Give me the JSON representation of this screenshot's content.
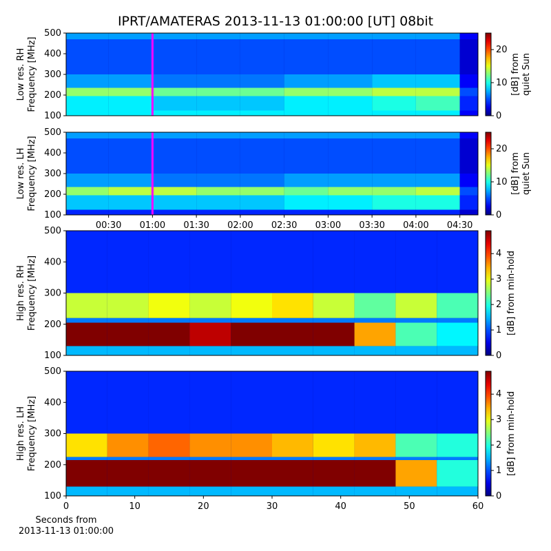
{
  "chart_data": [
    {
      "type": "heatmap",
      "title": "IPRT/AMATERAS 2013-11-13 01:00:00 [UT]   08bit",
      "ylabel": [
        "Low res. RH",
        "Frequency [MHz]"
      ],
      "xlim": [
        1,
        282.4
      ],
      "ylim": [
        100,
        500
      ],
      "yticks": [
        100,
        200,
        300,
        400,
        500
      ],
      "x_bins": [
        1,
        30,
        60,
        90,
        120,
        150,
        180,
        210,
        240,
        270,
        282.4
      ],
      "y_bins": [
        100,
        125,
        195,
        235,
        300,
        400,
        470,
        500
      ],
      "values": [
        [
          9,
          9,
          9,
          9,
          9,
          9,
          9,
          9,
          9,
          3
        ],
        [
          9,
          9,
          8,
          8,
          8,
          9,
          9,
          10,
          11,
          4
        ],
        [
          13,
          13,
          12,
          12,
          12,
          13,
          13,
          14,
          14,
          5
        ],
        [
          7,
          7,
          6,
          6,
          6,
          7,
          7,
          8,
          8,
          3
        ],
        [
          5,
          5,
          5,
          5,
          5,
          5,
          5,
          5,
          5,
          2
        ],
        [
          5,
          5,
          5,
          5,
          5,
          5,
          5,
          5,
          5,
          2
        ],
        [
          7,
          7,
          7,
          7,
          7,
          7,
          7,
          7,
          7,
          3
        ]
      ],
      "colormap": "jet",
      "clim": [
        0,
        25
      ],
      "cticks": [
        0,
        10,
        20
      ],
      "clabel": [
        "[dB] from",
        "quiet Sun"
      ],
      "marker_x": 60,
      "marker_color": "#ff00ff"
    },
    {
      "type": "heatmap",
      "ylabel": [
        "Low res. LH",
        "Frequency [MHz]"
      ],
      "xlim": [
        1,
        282.4
      ],
      "ylim": [
        100,
        500
      ],
      "yticks": [
        100,
        200,
        300,
        400,
        500
      ],
      "xticks": [
        {
          "value": 30,
          "label": "00:30"
        },
        {
          "value": 60,
          "label": "01:00"
        },
        {
          "value": 90,
          "label": "01:30"
        },
        {
          "value": 120,
          "label": "02:00"
        },
        {
          "value": 150,
          "label": "02:30"
        },
        {
          "value": 180,
          "label": "03:00"
        },
        {
          "value": 210,
          "label": "03:30"
        },
        {
          "value": 240,
          "label": "04:00"
        },
        {
          "value": 270,
          "label": "04:30"
        }
      ],
      "x_bins": [
        1,
        30,
        60,
        90,
        120,
        150,
        180,
        210,
        240,
        270,
        282.4
      ],
      "y_bins": [
        100,
        125,
        195,
        235,
        300,
        400,
        470,
        500
      ],
      "values": [
        [
          4,
          4,
          4,
          4,
          4,
          4,
          4,
          4,
          4,
          2
        ],
        [
          8,
          8,
          8,
          8,
          8,
          9,
          9,
          10,
          10,
          4
        ],
        [
          13,
          14,
          14,
          13,
          13,
          12,
          13,
          13,
          14,
          5
        ],
        [
          7,
          7,
          6,
          6,
          6,
          7,
          7,
          7,
          7,
          3
        ],
        [
          5,
          5,
          5,
          5,
          5,
          5,
          5,
          5,
          5,
          2
        ],
        [
          5,
          5,
          5,
          5,
          5,
          5,
          5,
          5,
          5,
          2
        ],
        [
          7,
          7,
          7,
          7,
          7,
          7,
          7,
          7,
          7,
          3
        ]
      ],
      "colormap": "jet",
      "clim": [
        0,
        25
      ],
      "cticks": [
        0,
        10,
        20
      ],
      "clabel": [
        "[dB] from",
        "quiet Sun"
      ],
      "marker_x": 60,
      "marker_color": "#ff00ff"
    },
    {
      "type": "heatmap",
      "ylabel": [
        "High res. RH",
        "Frequency [MHz]"
      ],
      "xlim": [
        0,
        60
      ],
      "ylim": [
        100,
        500
      ],
      "yticks": [
        100,
        200,
        300,
        400,
        500
      ],
      "x_bins": [
        0,
        6,
        12,
        18,
        24,
        30,
        36,
        42,
        48,
        54,
        60
      ],
      "y_bins": [
        100,
        130,
        205,
        220,
        300,
        500
      ],
      "values": [
        [
          1.5,
          1.5,
          1.5,
          1.5,
          1.5,
          1.5,
          1.5,
          1.5,
          1.5,
          1.5
        ],
        [
          4.9,
          4.9,
          4.9,
          4.6,
          4.9,
          4.9,
          4.9,
          3.5,
          2.2,
          1.8
        ],
        [
          1.2,
          1.2,
          1.2,
          1.2,
          1.2,
          1.2,
          1.2,
          1.2,
          1.2,
          1.2
        ],
        [
          2.8,
          2.8,
          3.0,
          2.8,
          3.0,
          3.2,
          2.8,
          2.3,
          2.8,
          2.2
        ],
        [
          0.8,
          0.8,
          0.8,
          0.8,
          0.8,
          0.8,
          0.8,
          0.8,
          0.8,
          0.8
        ]
      ],
      "colormap": "jet",
      "clim": [
        0,
        4.9
      ],
      "cticks": [
        0,
        1,
        2,
        3,
        4
      ],
      "clabel": [
        "[dB] from min-hold"
      ]
    },
    {
      "type": "heatmap",
      "ylabel": [
        "High res. LH",
        "Frequency [MHz]"
      ],
      "xlabel": [
        "Seconds from",
        "2013-11-13 01:00:00"
      ],
      "xlim": [
        0,
        60
      ],
      "ylim": [
        100,
        500
      ],
      "yticks": [
        100,
        200,
        300,
        400,
        500
      ],
      "xticks": [
        0,
        10,
        20,
        30,
        40,
        50,
        60
      ],
      "x_bins": [
        0,
        6,
        12,
        18,
        24,
        30,
        36,
        42,
        48,
        54,
        60
      ],
      "y_bins": [
        100,
        130,
        215,
        225,
        300,
        500
      ],
      "values": [
        [
          1.5,
          1.5,
          1.5,
          1.5,
          1.5,
          1.5,
          1.5,
          1.5,
          1.5,
          1.5
        ],
        [
          4.9,
          4.9,
          4.9,
          4.9,
          4.9,
          4.9,
          4.9,
          4.9,
          3.5,
          2.0
        ],
        [
          1.2,
          1.2,
          1.2,
          1.2,
          1.2,
          1.2,
          1.2,
          1.2,
          1.2,
          1.2
        ],
        [
          3.2,
          3.6,
          3.8,
          3.6,
          3.6,
          3.4,
          3.2,
          3.4,
          2.2,
          2.0
        ],
        [
          0.8,
          0.8,
          0.8,
          0.8,
          0.8,
          0.8,
          0.8,
          0.8,
          0.8,
          0.8
        ]
      ],
      "colormap": "jet",
      "clim": [
        0,
        4.9
      ],
      "cticks": [
        0,
        1,
        2,
        3,
        4
      ],
      "clabel": [
        "[dB] from min-hold"
      ]
    }
  ]
}
